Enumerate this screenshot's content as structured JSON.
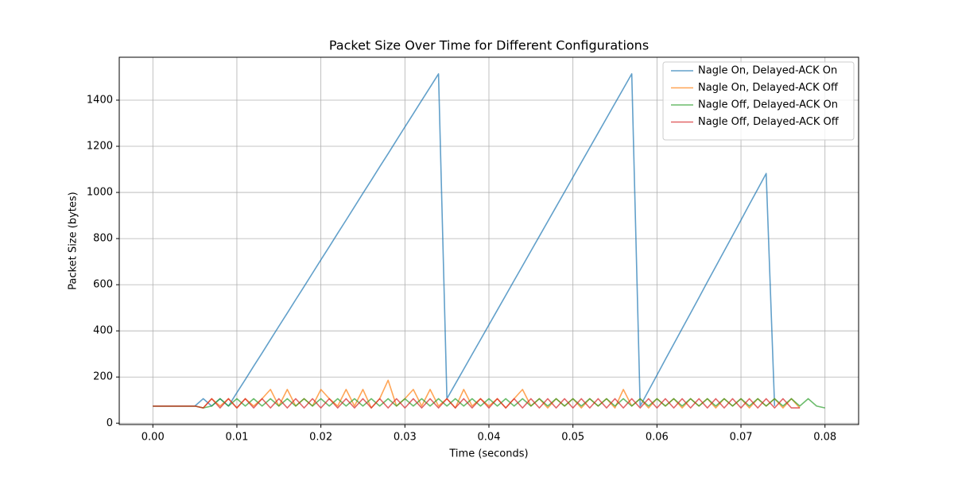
{
  "chart_data": {
    "type": "line",
    "title": "Packet Size Over Time for Different Configurations",
    "xlabel": "Time (seconds)",
    "ylabel": "Packet Size (bytes)",
    "x": [
      0,
      0.001,
      0.002,
      0.003,
      0.004,
      0.005,
      0.006,
      0.007,
      0.008,
      0.009,
      0.01,
      0.011,
      0.012,
      0.013,
      0.014,
      0.015,
      0.016,
      0.017,
      0.018,
      0.019,
      0.02,
      0.021,
      0.022,
      0.023,
      0.024,
      0.025,
      0.026,
      0.027,
      0.028,
      0.029,
      0.03,
      0.031,
      0.032,
      0.033,
      0.034,
      0.035,
      0.036,
      0.037,
      0.038,
      0.039,
      0.04,
      0.041,
      0.042,
      0.043,
      0.044,
      0.045,
      0.046,
      0.047,
      0.048,
      0.049,
      0.05,
      0.051,
      0.052,
      0.053,
      0.054,
      0.055,
      0.056,
      0.057,
      0.058,
      0.059,
      0.06,
      0.061,
      0.062,
      0.063,
      0.064,
      0.065,
      0.066,
      0.067,
      0.068,
      0.069,
      0.07,
      0.071,
      0.072,
      0.073,
      0.074,
      0.075,
      0.076,
      0.077,
      0.078,
      0.079,
      0.08
    ],
    "series": [
      {
        "name": "Nagle On, Delayed-ACK On",
        "color": "#1f77b4",
        "values": [
          74,
          74,
          74,
          74,
          74,
          74,
          106,
          74,
          106,
          74,
          132,
          189,
          247,
          304,
          362,
          420,
          477,
          535,
          592,
          650,
          708,
          765,
          823,
          880,
          938,
          996,
          1053,
          1111,
          1168,
          1226,
          1284,
          1341,
          1399,
          1456,
          1514,
          106,
          170,
          234,
          298,
          362,
          426,
          490,
          554,
          618,
          682,
          746,
          810,
          874,
          938,
          1002,
          1066,
          1130,
          1194,
          1258,
          1322,
          1386,
          1450,
          1514,
          74,
          141,
          208,
          276,
          343,
          410,
          477,
          544,
          612,
          679,
          746,
          813,
          880,
          948,
          1015,
          1082,
          74,
          null,
          null,
          null,
          null,
          null,
          null
        ]
      },
      {
        "name": "Nagle On, Delayed-ACK Off",
        "color": "#ff7f0e",
        "values": [
          74,
          74,
          74,
          74,
          74,
          74,
          66,
          106,
          74,
          106,
          66,
          106,
          74,
          106,
          146,
          74,
          146,
          74,
          106,
          74,
          146,
          106,
          74,
          146,
          74,
          146,
          66,
          106,
          186,
          74,
          106,
          146,
          74,
          146,
          74,
          106,
          66,
          146,
          74,
          106,
          74,
          106,
          66,
          106,
          146,
          74,
          106,
          66,
          106,
          74,
          106,
          66,
          106,
          74,
          106,
          66,
          146,
          74,
          106,
          66,
          106,
          74,
          106,
          66,
          106,
          74,
          106,
          66,
          106,
          74,
          106,
          66,
          106,
          74,
          106,
          66,
          106,
          66,
          null,
          null,
          null
        ]
      },
      {
        "name": "Nagle Off, Delayed-ACK On",
        "color": "#2ca02c",
        "values": [
          74,
          74,
          74,
          74,
          74,
          74,
          66,
          74,
          106,
          74,
          106,
          74,
          106,
          74,
          106,
          74,
          106,
          74,
          106,
          74,
          106,
          74,
          106,
          74,
          106,
          74,
          106,
          74,
          106,
          74,
          106,
          74,
          106,
          74,
          106,
          74,
          106,
          74,
          106,
          74,
          106,
          74,
          106,
          74,
          106,
          74,
          106,
          74,
          106,
          74,
          106,
          74,
          106,
          74,
          106,
          74,
          106,
          74,
          106,
          74,
          106,
          74,
          106,
          74,
          106,
          74,
          106,
          74,
          106,
          74,
          106,
          74,
          106,
          74,
          106,
          74,
          106,
          74,
          106,
          74,
          66
        ]
      },
      {
        "name": "Nagle Off, Delayed-ACK Off",
        "color": "#d62728",
        "values": [
          74,
          74,
          74,
          74,
          74,
          74,
          66,
          106,
          66,
          106,
          66,
          106,
          66,
          106,
          66,
          106,
          66,
          106,
          66,
          106,
          66,
          106,
          66,
          106,
          66,
          106,
          66,
          106,
          66,
          106,
          66,
          106,
          66,
          106,
          66,
          106,
          66,
          106,
          66,
          106,
          66,
          106,
          66,
          106,
          66,
          106,
          66,
          106,
          66,
          106,
          66,
          106,
          66,
          106,
          66,
          106,
          66,
          106,
          66,
          106,
          66,
          106,
          66,
          106,
          66,
          106,
          66,
          106,
          66,
          106,
          66,
          106,
          66,
          106,
          66,
          106,
          66,
          66,
          null,
          null,
          null
        ]
      }
    ],
    "xlim": [
      -0.004,
      0.084
    ],
    "ylim": [
      -6,
      1586
    ],
    "xticks": [
      {
        "value": 0,
        "label": "0.00"
      },
      0.01,
      0.02,
      0.03,
      0.04,
      0.05,
      0.06,
      0.07,
      0.08
    ],
    "yticks": [
      0,
      200,
      400,
      600,
      800,
      1000,
      1200,
      1400
    ],
    "grid": true,
    "legend": "upper right",
    "alpha": 0.7
  }
}
